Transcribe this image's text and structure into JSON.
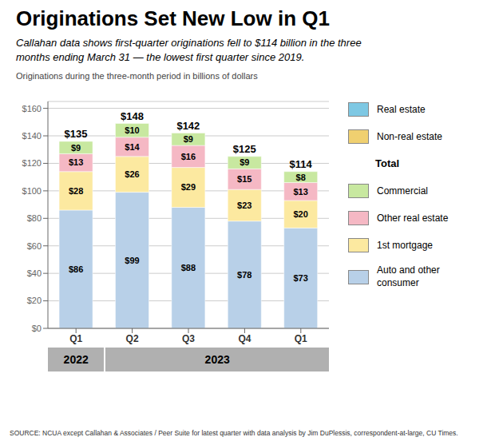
{
  "chart_data": {
    "type": "bar",
    "stacked": true,
    "title": "Originations Set New Low in Q1",
    "subtitle": "Callahan data shows first-quarter originations fell to $114 billion in the three\nmonths ending March 31 — the lowest first quarter since 2019.",
    "axis_label": "Originations during the three-month period in billions of dollars",
    "source": "SOURCE: NCUA except Callahan & Associates / Peer Suite for latest quarter with data analysis by Jim DuPlessis, correspondent-at-large, CU Times.",
    "categories": [
      "Q1",
      "Q2",
      "Q3",
      "Q4",
      "Q1"
    ],
    "series": [
      {
        "name": "Auto and other\nconsumer",
        "color": "#b8d0e8",
        "values": [
          86,
          99,
          88,
          78,
          73
        ],
        "value_labels": [
          "$86",
          "$99",
          "$88",
          "$78",
          "$73"
        ]
      },
      {
        "name": "1st mortgage",
        "color": "#fce9a0",
        "values": [
          28,
          26,
          29,
          23,
          20
        ],
        "value_labels": [
          "$28",
          "$26",
          "$29",
          "$23",
          "$20"
        ]
      },
      {
        "name": "Other real estate",
        "color": "#f5b8c4",
        "values": [
          13,
          14,
          16,
          15,
          13
        ],
        "value_labels": [
          "$13",
          "$14",
          "$16",
          "$15",
          "$13"
        ]
      },
      {
        "name": "Commercial",
        "color": "#c8e8a0",
        "values": [
          9,
          10,
          9,
          9,
          8
        ],
        "value_labels": [
          "$9",
          "$10",
          "$9",
          "$9",
          "$8"
        ]
      }
    ],
    "totals": [
      135,
      148,
      142,
      125,
      114
    ],
    "total_labels": [
      "$135",
      "$148",
      "$142",
      "$125",
      "$114"
    ],
    "legend_items": [
      {
        "name": "Real estate",
        "color": "#7ec8e3"
      },
      {
        "name": "Non-real estate",
        "color": "#f0d070"
      },
      {
        "name": "Total"
      }
    ],
    "category_groups": [
      {
        "label": "2022",
        "count": 1
      },
      {
        "label": "2023",
        "count": 4
      }
    ],
    "ylim": [
      0,
      165
    ],
    "yticks": [
      {
        "value": 0,
        "label": "$0"
      },
      {
        "value": 20,
        "label": "$20"
      },
      {
        "value": 40,
        "label": "$40"
      },
      {
        "value": 60,
        "label": "$60"
      },
      {
        "value": 80,
        "label": "$80"
      },
      {
        "value": 100,
        "label": "$100"
      },
      {
        "value": 120,
        "label": "$120"
      },
      {
        "value": 140,
        "label": "$140"
      },
      {
        "value": 160,
        "label": "$160"
      }
    ],
    "grid": true,
    "data_labels": true,
    "legend": "right"
  }
}
